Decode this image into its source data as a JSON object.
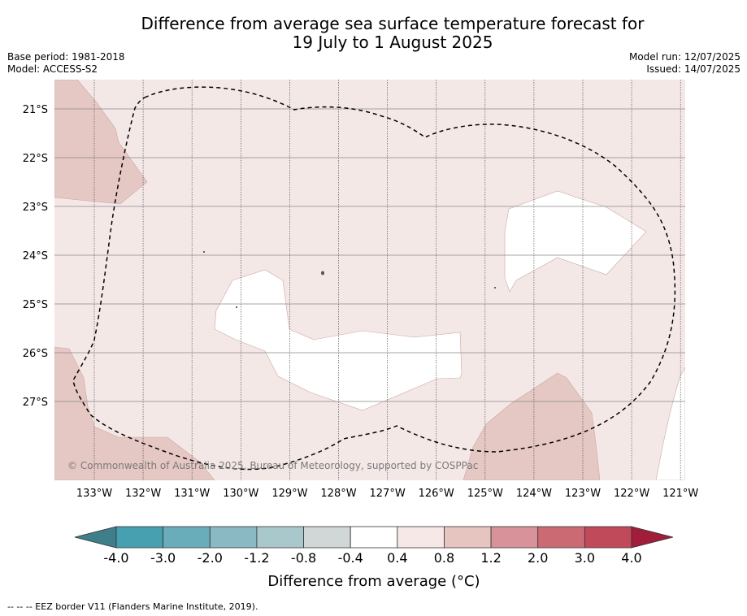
{
  "header": {
    "title_line1": "Difference from average sea surface temperature forecast for",
    "title_line2": "19 July to 1 August 2025",
    "base_period": "Base period: 1981-2018",
    "model": "Model: ACCESS-S2",
    "model_run": "Model run: 12/07/2025",
    "issued": "Issued: 14/07/2025"
  },
  "map": {
    "lon_labels": [
      "133°W",
      "132°W",
      "131°W",
      "130°W",
      "129°W",
      "128°W",
      "127°W",
      "126°W",
      "125°W",
      "124°W",
      "123°W",
      "122°W",
      "121°W"
    ],
    "lat_labels": [
      "21°S",
      "22°S",
      "23°S",
      "24°S",
      "25°S",
      "26°S",
      "27°S"
    ],
    "copyright": "© Commonwealth of Australia 2025, Bureau of Meteorology, supported by COSPPac",
    "colors": {
      "band_0_4_0_8": "#f4e8e7",
      "band_0_8_1_2": "#e5c7c3",
      "band_neg_0_4_0_4": "#ffffff",
      "eez_line": "#000000"
    }
  },
  "colorbar": {
    "tick_labels": [
      "-4.0",
      "-3.0",
      "-2.0",
      "-1.2",
      "-0.8",
      "-0.4",
      "0.4",
      "0.8",
      "1.2",
      "2.0",
      "3.0",
      "4.0"
    ],
    "segment_colors": [
      "#3f7f8c",
      "#46a0b0",
      "#6aadba",
      "#8ab8c3",
      "#a9c8cc",
      "#d1d6d7",
      "#ffffff",
      "#f5e8e6",
      "#e6c4c0",
      "#d8929a",
      "#cc6a74",
      "#c0495a",
      "#a01e3a"
    ],
    "title": "Difference from average (°C)"
  },
  "footnote": "--  --  -- EEZ border V11 (Flanders Marine Institute, 2019)."
}
